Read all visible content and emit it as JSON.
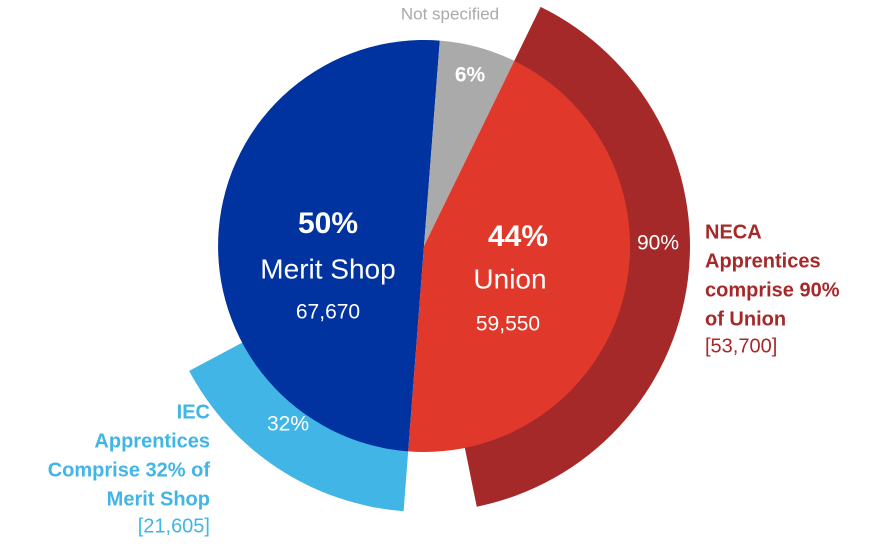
{
  "chart_data": {
    "type": "pie",
    "categories": [
      "Merit Shop",
      "Not specified",
      "Union"
    ],
    "values": [
      50,
      6,
      44
    ],
    "value_labels": [
      "50%",
      "6%",
      "44%"
    ],
    "colors": [
      "#00339f",
      "#aaaaaa",
      "#e0392b"
    ],
    "counts": [
      67670,
      null,
      59550
    ],
    "count_labels": [
      "67,670",
      null,
      "59,550"
    ],
    "sub_series": {
      "values": [
        32,
        null,
        90
      ],
      "value_labels": [
        "32%",
        null,
        "90%"
      ],
      "colors": [
        "#41b6e6",
        null,
        "#a6292a"
      ],
      "annotations": [
        [
          "IEC",
          "Apprentices",
          "Comprise 32% of",
          "Merit Shop"
        ],
        null,
        [
          "NECA",
          "Apprentices",
          "comprise 90%",
          "of Union"
        ]
      ],
      "counts": [
        21605,
        null,
        53700
      ],
      "count_labels": [
        "[21,605]",
        null,
        "[53,700]"
      ]
    }
  }
}
